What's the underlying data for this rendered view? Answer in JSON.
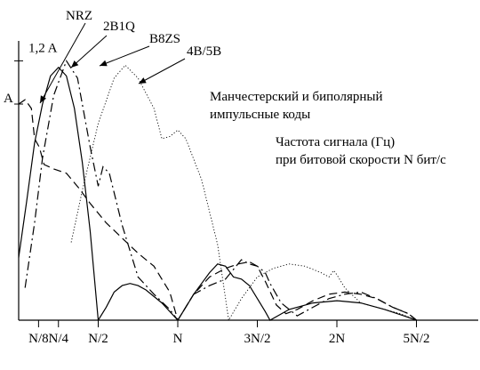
{
  "chart_data": {
    "type": "line",
    "xlabel": "Частота сигнала (Гц)",
    "xlabel_line2": "при битовой скорости N бит/с",
    "annotation": "Манчестерский и биполярный",
    "annotation_line2": "импульсные коды",
    "y_ticks": [
      {
        "label": "A",
        "value": 1.0
      },
      {
        "label": "1,2 A",
        "value": 1.2
      }
    ],
    "x_ticks": [
      {
        "label": "N/8",
        "value": 0.125
      },
      {
        "label": "N/4",
        "value": 0.25
      },
      {
        "label": "N/2",
        "value": 0.5
      },
      {
        "label": "N",
        "value": 1.0
      },
      {
        "label": "3N/2",
        "value": 1.5
      },
      {
        "label": "2N",
        "value": 2.0
      },
      {
        "label": "5N/2",
        "value": 2.5
      }
    ],
    "xlim": [
      0,
      2.55
    ],
    "ylim": [
      0,
      1.3
    ],
    "series": [
      {
        "name": "NRZ",
        "style": "solid",
        "points": [
          [
            0.0,
            0.29
          ],
          [
            0.05,
            0.55
          ],
          [
            0.1,
            0.82
          ],
          [
            0.15,
            1.0
          ],
          [
            0.2,
            1.13
          ],
          [
            0.25,
            1.17
          ],
          [
            0.3,
            1.13
          ],
          [
            0.35,
            0.98
          ],
          [
            0.4,
            0.73
          ],
          [
            0.45,
            0.41
          ],
          [
            0.5,
            0.0
          ],
          [
            0.55,
            0.06
          ],
          [
            0.6,
            0.13
          ],
          [
            0.65,
            0.16
          ],
          [
            0.7,
            0.17
          ],
          [
            0.75,
            0.16
          ],
          [
            0.8,
            0.14
          ],
          [
            0.9,
            0.08
          ],
          [
            1.0,
            0.0
          ],
          [
            1.05,
            0.06
          ],
          [
            1.1,
            0.12
          ],
          [
            1.15,
            0.17
          ],
          [
            1.2,
            0.22
          ],
          [
            1.25,
            0.26
          ],
          [
            1.3,
            0.25
          ],
          [
            1.35,
            0.2
          ],
          [
            1.4,
            0.19
          ],
          [
            1.45,
            0.16
          ],
          [
            1.5,
            0.1
          ],
          [
            1.55,
            0.04
          ],
          [
            1.58,
            0.0
          ],
          [
            1.7,
            0.05
          ],
          [
            1.85,
            0.08
          ],
          [
            2.0,
            0.09
          ],
          [
            2.15,
            0.08
          ],
          [
            2.3,
            0.05
          ],
          [
            2.42,
            0.02
          ],
          [
            2.5,
            0.0
          ]
        ]
      },
      {
        "name": "2B1Q",
        "style": "dashdot",
        "points": [
          [
            0.04,
            0.15
          ],
          [
            0.1,
            0.45
          ],
          [
            0.15,
            0.75
          ],
          [
            0.22,
            1.04
          ],
          [
            0.3,
            1.2
          ],
          [
            0.37,
            1.12
          ],
          [
            0.45,
            0.8
          ],
          [
            0.5,
            0.62
          ],
          [
            0.53,
            0.71
          ],
          [
            0.57,
            0.68
          ],
          [
            0.65,
            0.44
          ],
          [
            0.75,
            0.2
          ],
          [
            0.85,
            0.12
          ],
          [
            0.95,
            0.05
          ],
          [
            1.0,
            0.0
          ],
          [
            1.1,
            0.12
          ],
          [
            1.2,
            0.16
          ],
          [
            1.3,
            0.19
          ],
          [
            1.4,
            0.28
          ],
          [
            1.45,
            0.26
          ],
          [
            1.5,
            0.25
          ],
          [
            1.55,
            0.22
          ],
          [
            1.58,
            0.17
          ],
          [
            1.65,
            0.08
          ],
          [
            1.75,
            0.02
          ],
          [
            1.85,
            0.06
          ],
          [
            1.95,
            0.1
          ],
          [
            2.05,
            0.12
          ],
          [
            2.15,
            0.13
          ],
          [
            2.25,
            0.1
          ],
          [
            2.35,
            0.06
          ],
          [
            2.45,
            0.03
          ],
          [
            2.5,
            0.0
          ]
        ]
      },
      {
        "name": "B8ZS",
        "style": "dashed",
        "points": [
          [
            0.0,
            1.0
          ],
          [
            0.04,
            1.02
          ],
          [
            0.08,
            0.98
          ],
          [
            0.1,
            0.84
          ],
          [
            0.13,
            0.8
          ],
          [
            0.16,
            0.72
          ],
          [
            0.22,
            0.7
          ],
          [
            0.3,
            0.68
          ],
          [
            0.38,
            0.61
          ],
          [
            0.45,
            0.54
          ],
          [
            0.55,
            0.45
          ],
          [
            0.65,
            0.38
          ],
          [
            0.75,
            0.31
          ],
          [
            0.85,
            0.25
          ],
          [
            0.95,
            0.13
          ],
          [
            1.0,
            0.0
          ],
          [
            1.1,
            0.12
          ],
          [
            1.2,
            0.2
          ],
          [
            1.3,
            0.24
          ],
          [
            1.38,
            0.26
          ],
          [
            1.45,
            0.27
          ],
          [
            1.5,
            0.25
          ],
          [
            1.55,
            0.18
          ],
          [
            1.62,
            0.07
          ],
          [
            1.68,
            0.03
          ],
          [
            1.75,
            0.05
          ],
          [
            1.85,
            0.09
          ],
          [
            1.95,
            0.12
          ],
          [
            2.05,
            0.13
          ],
          [
            2.15,
            0.12
          ],
          [
            2.25,
            0.1
          ],
          [
            2.35,
            0.06
          ],
          [
            2.45,
            0.03
          ],
          [
            2.5,
            0.0
          ]
        ]
      },
      {
        "name": "4B/5B",
        "style": "dotted",
        "points": [
          [
            0.33,
            0.36
          ],
          [
            0.4,
            0.6
          ],
          [
            0.5,
            0.91
          ],
          [
            0.6,
            1.12
          ],
          [
            0.67,
            1.18
          ],
          [
            0.75,
            1.12
          ],
          [
            0.85,
            0.98
          ],
          [
            0.9,
            0.84
          ],
          [
            0.95,
            0.85
          ],
          [
            1.0,
            0.88
          ],
          [
            1.05,
            0.84
          ],
          [
            1.15,
            0.65
          ],
          [
            1.25,
            0.35
          ],
          [
            1.32,
            0.0
          ],
          [
            1.4,
            0.1
          ],
          [
            1.5,
            0.2
          ],
          [
            1.6,
            0.24
          ],
          [
            1.7,
            0.26
          ],
          [
            1.8,
            0.25
          ],
          [
            1.9,
            0.22
          ],
          [
            1.95,
            0.2
          ],
          [
            1.98,
            0.23
          ],
          [
            2.0,
            0.21
          ],
          [
            2.05,
            0.15
          ],
          [
            2.15,
            0.08
          ],
          [
            2.3,
            0.05
          ],
          [
            2.4,
            0.03
          ],
          [
            2.5,
            0.0
          ]
        ]
      }
    ],
    "series_labels": [
      {
        "series": "NRZ",
        "text": "NRZ"
      },
      {
        "series": "2B1Q",
        "text": "2B1Q"
      },
      {
        "series": "B8ZS",
        "text": "B8ZS"
      },
      {
        "series": "4B/5B",
        "text": "4B/5B"
      }
    ]
  }
}
